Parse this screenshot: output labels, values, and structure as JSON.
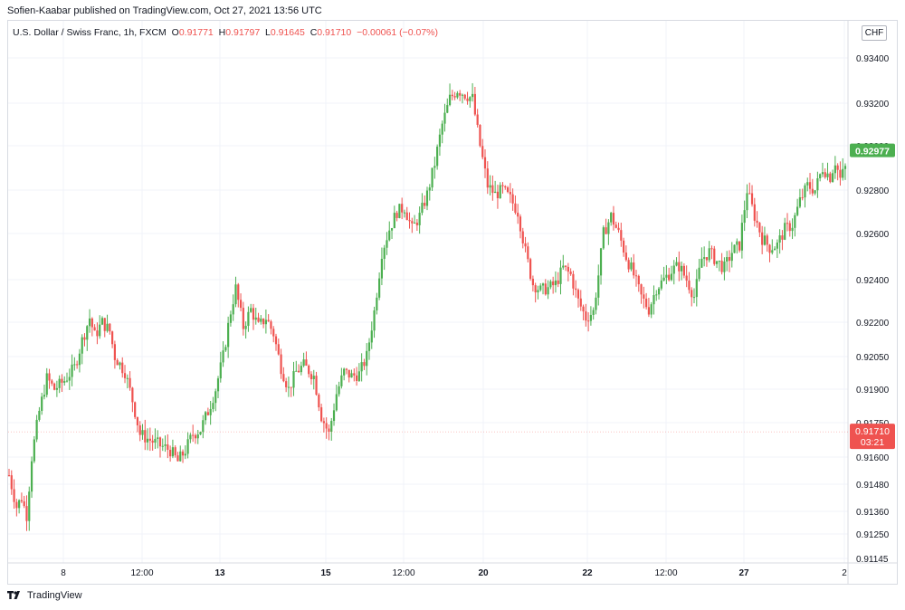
{
  "header": {
    "publisher_line": "Sofien-Kaabar published on TradingView.com, Oct 27, 2021 13:56 UTC"
  },
  "legend": {
    "symbol": "U.S. Dollar / Swiss Franc, 1h, FXCM",
    "open_key": "O",
    "open": "0.91771",
    "high_key": "H",
    "high": "0.91797",
    "low_key": "L",
    "low": "0.91645",
    "close_key": "C",
    "close": "0.91710",
    "change": "−0.00061 (−0.07%)"
  },
  "currency_button": "CHF",
  "footer": {
    "brand": "TradingView"
  },
  "colors": {
    "up": "#26a69a",
    "up_body": "#4caf50",
    "down": "#ef5350",
    "grid": "#f0f3fa"
  },
  "chart_data": {
    "type": "candlestick",
    "title": "U.S. Dollar / Swiss Franc, 1h, FXCM",
    "y_ticks": [
      "0.93400",
      "0.93200",
      "0.93000",
      "0.92800",
      "0.92600",
      "0.92400",
      "0.92200",
      "0.92050",
      "0.91900",
      "0.91750",
      "0.91600",
      "0.91480",
      "0.91360",
      "0.91250",
      "0.91145"
    ],
    "y_values": [
      0.934,
      0.932,
      0.93,
      0.928,
      0.926,
      0.924,
      0.922,
      0.9205,
      0.919,
      0.9175,
      0.916,
      0.9148,
      0.9136,
      0.9125,
      0.91145
    ],
    "x_ticks": [
      {
        "label": "8",
        "bold": false
      },
      {
        "label": "12:00",
        "bold": false
      },
      {
        "label": "13",
        "bold": true
      },
      {
        "label": "15",
        "bold": true
      },
      {
        "label": "12:00",
        "bold": false
      },
      {
        "label": "20",
        "bold": true
      },
      {
        "label": "22",
        "bold": true
      },
      {
        "label": "12:00",
        "bold": false
      },
      {
        "label": "27",
        "bold": true
      },
      {
        "label": "2",
        "bold": false
      }
    ],
    "last_price": {
      "label": "0.92977",
      "value": 0.92977,
      "color": "#4caf50"
    },
    "current_price": {
      "label": "0.91710",
      "value": 0.9171,
      "countdown": "03:21",
      "color": "#ef5350"
    },
    "price_path": [
      [
        0,
        0.9152
      ],
      [
        3,
        0.9138
      ],
      [
        5,
        0.9142
      ],
      [
        7,
        0.9134
      ],
      [
        9,
        0.916
      ],
      [
        12,
        0.918
      ],
      [
        15,
        0.9195
      ],
      [
        18,
        0.919
      ],
      [
        22,
        0.9194
      ],
      [
        26,
        0.92
      ],
      [
        29,
        0.9212
      ],
      [
        32,
        0.9222
      ],
      [
        34,
        0.9214
      ],
      [
        37,
        0.922
      ],
      [
        40,
        0.9216
      ],
      [
        42,
        0.9205
      ],
      [
        46,
        0.9198
      ],
      [
        49,
        0.9185
      ],
      [
        52,
        0.917
      ],
      [
        55,
        0.9168
      ],
      [
        60,
        0.9165
      ],
      [
        64,
        0.9163
      ],
      [
        67,
        0.9158
      ],
      [
        70,
        0.9163
      ],
      [
        73,
        0.917
      ],
      [
        76,
        0.9172
      ],
      [
        79,
        0.918
      ],
      [
        82,
        0.919
      ],
      [
        85,
        0.9205
      ],
      [
        88,
        0.9225
      ],
      [
        90,
        0.9236
      ],
      [
        93,
        0.9218
      ],
      [
        96,
        0.9226
      ],
      [
        99,
        0.9218
      ],
      [
        102,
        0.9222
      ],
      [
        105,
        0.9215
      ],
      [
        108,
        0.92
      ],
      [
        111,
        0.919
      ],
      [
        114,
        0.9198
      ],
      [
        117,
        0.9201
      ],
      [
        121,
        0.9196
      ],
      [
        124,
        0.9178
      ],
      [
        127,
        0.917
      ],
      [
        130,
        0.9188
      ],
      [
        133,
        0.9198
      ],
      [
        136,
        0.9196
      ],
      [
        139,
        0.9197
      ],
      [
        142,
        0.9205
      ],
      [
        145,
        0.9225
      ],
      [
        148,
        0.9252
      ],
      [
        151,
        0.9262
      ],
      [
        154,
        0.927
      ],
      [
        157,
        0.9272
      ],
      [
        160,
        0.9262
      ],
      [
        163,
        0.9268
      ],
      [
        166,
        0.9278
      ],
      [
        169,
        0.9292
      ],
      [
        172,
        0.931
      ],
      [
        175,
        0.9322
      ],
      [
        178,
        0.9326
      ],
      [
        181,
        0.9324
      ],
      [
        184,
        0.9322
      ],
      [
        187,
        0.93
      ],
      [
        190,
        0.9282
      ],
      [
        193,
        0.9278
      ],
      [
        196,
        0.928
      ],
      [
        199,
        0.9276
      ],
      [
        202,
        0.927
      ],
      [
        205,
        0.9252
      ],
      [
        208,
        0.9238
      ],
      [
        211,
        0.9235
      ],
      [
        214,
        0.9236
      ],
      [
        217,
        0.9238
      ],
      [
        220,
        0.9245
      ],
      [
        223,
        0.9242
      ],
      [
        226,
        0.923
      ],
      [
        229,
        0.9222
      ],
      [
        232,
        0.9225
      ],
      [
        234,
        0.9242
      ],
      [
        236,
        0.926
      ],
      [
        239,
        0.9268
      ],
      [
        242,
        0.926
      ],
      [
        245,
        0.925
      ],
      [
        248,
        0.9242
      ],
      [
        251,
        0.9232
      ],
      [
        254,
        0.9226
      ],
      [
        257,
        0.9236
      ],
      [
        260,
        0.924
      ],
      [
        263,
        0.9244
      ],
      [
        266,
        0.9246
      ],
      [
        269,
        0.924
      ],
      [
        272,
        0.9232
      ],
      [
        275,
        0.9249
      ],
      [
        278,
        0.9252
      ],
      [
        281,
        0.9248
      ],
      [
        284,
        0.9245
      ],
      [
        287,
        0.9252
      ],
      [
        290,
        0.9255
      ],
      [
        293,
        0.928
      ],
      [
        296,
        0.9268
      ],
      [
        299,
        0.9258
      ],
      [
        302,
        0.9254
      ],
      [
        305,
        0.9255
      ],
      [
        308,
        0.9262
      ],
      [
        311,
        0.9264
      ],
      [
        314,
        0.9275
      ],
      [
        317,
        0.9282
      ],
      [
        320,
        0.928
      ],
      [
        323,
        0.929
      ],
      [
        326,
        0.9286
      ],
      [
        328,
        0.9293
      ],
      [
        330,
        0.9285
      ],
      [
        332,
        0.929
      ]
    ]
  }
}
